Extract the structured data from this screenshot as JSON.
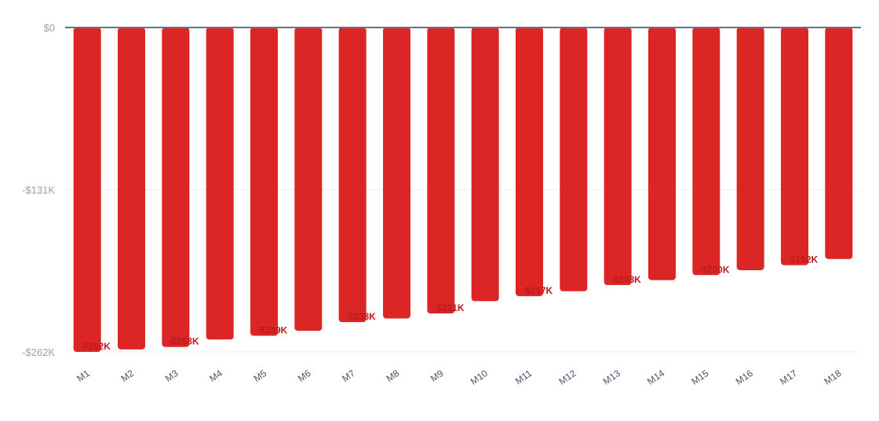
{
  "chart_data": {
    "type": "bar",
    "title": "",
    "xlabel": "",
    "ylabel": "",
    "categories": [
      "M1",
      "M2",
      "M3",
      "M4",
      "M5",
      "M6",
      "M7",
      "M8",
      "M9",
      "M10",
      "M11",
      "M12",
      "M13",
      "M14",
      "M15",
      "M16",
      "M17",
      "M18"
    ],
    "values": [
      -262000,
      -260000,
      -258000,
      -252000,
      -249000,
      -245000,
      -238000,
      -235000,
      -231000,
      -221000,
      -217000,
      -213000,
      -208000,
      -204000,
      -200000,
      -196000,
      -192000,
      -187000
    ],
    "data_labels": [
      "-$262K",
      "",
      "-$258K",
      "",
      "-$249K",
      "",
      "-$238K",
      "",
      "-$231K",
      "",
      "-$217K",
      "",
      "-$208K",
      "",
      "-$200K",
      "",
      "-$192K",
      ""
    ],
    "ylim": [
      -262000,
      0
    ],
    "y_ticks": [
      0,
      -131000,
      -262000
    ],
    "y_tick_labels": [
      "$0",
      "-$131K",
      "-$262K"
    ],
    "grid": true,
    "legend": "none",
    "colors": {
      "bar": "#dc2626",
      "data_label": "#b91c1c",
      "zero_line": "#64748b",
      "grid": "#eef0f3",
      "y_tick_text": "#94a3b8",
      "x_tick_text": "#475569"
    }
  }
}
